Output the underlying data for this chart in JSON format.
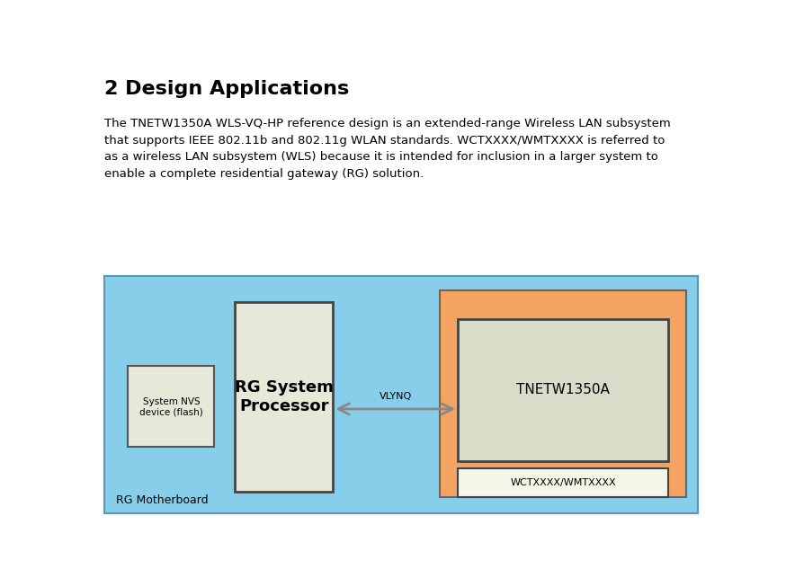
{
  "title": "2 Design Applications",
  "body_text": "The TNETW1350A WLS-VQ-HP reference design is an extended-range Wireless LAN subsystem that supports IEEE 802.11b and 802.11g WLAN standards. WCTXXXX/WMTXXXX is referred to as a wireless LAN subsystem (WLS) because it is intended for inclusion in a larger system to enable a complete residential gateway (RG) solution.",
  "bg_color": "#ffffff",
  "diagram_bg": "#87CEEB",
  "diagram_border": "#5599bb",
  "nvs_color": "#e8e8d8",
  "nvs_border": "#555555",
  "nvs_label": "System NVS\ndevice (flash)",
  "rg_color": "#e8e8d8",
  "rg_border": "#444444",
  "rg_label": "RG System\nProcessor",
  "wct_outer_color": "#F4A460",
  "wct_outer_border": "#666666",
  "tnetw_color": "#d8dcc8",
  "tnetw_border": "#444444",
  "tnetw_label": "TNETW1350A",
  "wct_label_color": "#f5f5e8",
  "wct_label_border": "#444444",
  "wct_label": "WCTXXXX/WMTXXXX",
  "rg_motherboard_label": "RG Motherboard",
  "vlynq_label": "VLYNQ",
  "arrow_color": "#888888"
}
